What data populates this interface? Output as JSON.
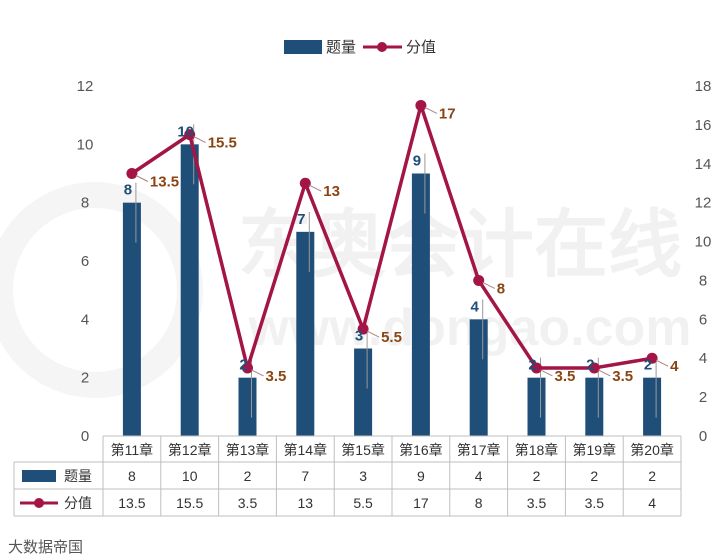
{
  "chart_data": {
    "type": "bar",
    "categories": [
      "第11章",
      "第12章",
      "第13章",
      "第14章",
      "第15章",
      "第16章",
      "第17章",
      "第18章",
      "第19章",
      "第20章"
    ],
    "series": [
      {
        "name": "题量",
        "kind": "bar",
        "axis": "left",
        "color": "#1f4e79",
        "values": [
          8,
          10,
          2,
          7,
          3,
          9,
          4,
          2,
          2,
          2
        ]
      },
      {
        "name": "分值",
        "kind": "line",
        "axis": "right",
        "color": "#a31545",
        "values": [
          13.5,
          15.5,
          3.5,
          13,
          5.5,
          17,
          8,
          3.5,
          3.5,
          4
        ]
      }
    ],
    "y_left": {
      "min": 0,
      "max": 12,
      "ticks": [
        0,
        2,
        4,
        6,
        8,
        10,
        12
      ]
    },
    "y_right": {
      "min": 0,
      "max": 18,
      "ticks": [
        0,
        2,
        4,
        6,
        8,
        10,
        12,
        14,
        16,
        18
      ]
    },
    "legend_position": "top-center",
    "data_table": true
  },
  "watermark": {
    "text_cn": "东奥会计在线",
    "text_en": "www.dongao.com"
  },
  "corner_badge": "大数据帝国"
}
